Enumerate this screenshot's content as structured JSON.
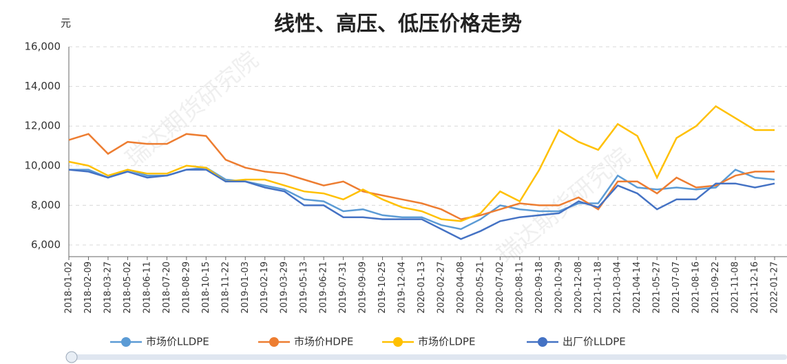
{
  "chart_data": {
    "type": "line",
    "title": "线性、高压、低压价格走势",
    "y_unit": "元",
    "watermark": "瑞达期货研究院",
    "categories": [
      "2018-01-02",
      "2018-02-09",
      "2018-03-27",
      "2018-05-02",
      "2018-06-11",
      "2018-07-20",
      "2018-08-29",
      "2018-10-15",
      "2018-11-22",
      "2019-01-03",
      "2019-02-19",
      "2019-03-29",
      "2019-05-13",
      "2019-06-21",
      "2019-07-31",
      "2019-09-09",
      "2019-10-25",
      "2019-12-04",
      "2020-01-13",
      "2020-02-27",
      "2020-04-08",
      "2020-05-21",
      "2020-07-02",
      "2020-08-11",
      "2020-09-18",
      "2020-10-29",
      "2020-12-08",
      "2021-01-18",
      "2021-03-04",
      "2021-04-14",
      "2021-05-27",
      "2021-07-07",
      "2021-08-16",
      "2021-09-22",
      "2021-11-08",
      "2021-12-16",
      "2022-01-27"
    ],
    "series": [
      {
        "name": "市场价LLDPE",
        "color": "#5b9bd5",
        "values": [
          9800,
          9800,
          9400,
          9800,
          9500,
          9500,
          9800,
          9900,
          9300,
          9200,
          9000,
          8800,
          8300,
          8200,
          7700,
          7800,
          7500,
          7400,
          7400,
          7000,
          6800,
          7300,
          8000,
          7800,
          7700,
          7700,
          8100,
          8100,
          9500,
          8900,
          8800,
          8900,
          8800,
          8900,
          9800,
          9400,
          9300
        ]
      },
      {
        "name": "市场价HDPE",
        "color": "#ed7d31",
        "values": [
          11300,
          11600,
          10600,
          11200,
          11100,
          11100,
          11600,
          11500,
          10300,
          9900,
          9700,
          9600,
          9300,
          9000,
          9200,
          8700,
          8500,
          8300,
          8100,
          7800,
          7300,
          7500,
          7800,
          8100,
          8000,
          8000,
          8400,
          7800,
          9200,
          9200,
          8600,
          9400,
          8900,
          9000,
          9500,
          9700,
          9700
        ]
      },
      {
        "name": "市场价LDPE",
        "color": "#ffc000",
        "values": [
          10200,
          10000,
          9500,
          9800,
          9600,
          9600,
          10000,
          9900,
          9200,
          9300,
          9300,
          9000,
          8700,
          8600,
          8300,
          8800,
          8300,
          7900,
          7700,
          7300,
          7200,
          7600,
          8700,
          8200,
          9800,
          11800,
          11200,
          10800,
          12100,
          11500,
          9400,
          11400,
          12000,
          13000,
          12400,
          11800,
          11800
        ]
      },
      {
        "name": "出厂价LLDPE",
        "color": "#4472c4",
        "values": [
          9800,
          9700,
          9400,
          9700,
          9400,
          9500,
          9800,
          9800,
          9200,
          9200,
          8900,
          8700,
          8000,
          8000,
          7400,
          7400,
          7300,
          7300,
          7300,
          6800,
          6300,
          6700,
          7200,
          7400,
          7500,
          7600,
          8200,
          7900,
          9000,
          8600,
          7800,
          8300,
          8300,
          9100,
          9100,
          8900,
          9100
        ]
      }
    ],
    "ylim": [
      5400,
      16000
    ],
    "yticks": [
      {
        "value": 6000,
        "label": "6,000"
      },
      {
        "value": 8000,
        "label": "8,000"
      },
      {
        "value": 10000,
        "label": "10,000"
      },
      {
        "value": 12000,
        "label": "12,000"
      },
      {
        "value": 14000,
        "label": "14,000"
      },
      {
        "value": 16000,
        "label": "16,000"
      }
    ],
    "grid": true
  }
}
